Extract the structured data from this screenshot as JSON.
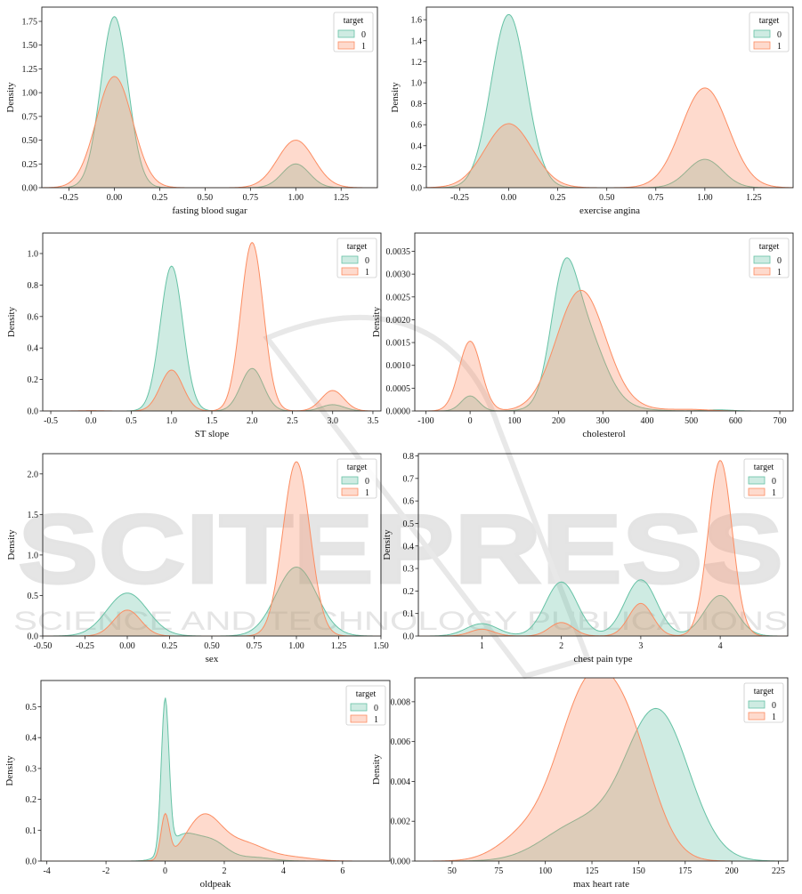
{
  "palette": {
    "class0": "#66c2a5",
    "class1": "#fc8d62"
  },
  "watermark": {
    "main": "SCITEPRESS",
    "sub": "SCIENCE AND TECHNOLOGY PUBLICATIONS"
  },
  "chart_data": [
    {
      "type": "area",
      "xlabel": "fasting blood sugar",
      "ylabel": "Density",
      "xlim": [
        -0.4,
        1.45
      ],
      "ylim": [
        0,
        1.9
      ],
      "xticks": [
        -0.25,
        0.0,
        0.25,
        0.5,
        0.75,
        1.0,
        1.25
      ],
      "yticks": [
        0.0,
        0.25,
        0.5,
        0.75,
        1.0,
        1.25,
        1.5,
        1.75
      ],
      "legend": {
        "title": "target",
        "placement": "top-right",
        "entries": [
          "0",
          "1"
        ]
      },
      "series": [
        {
          "name": "0",
          "peaks": [
            [
              0.0,
              1.8,
              0.075
            ],
            [
              1.0,
              0.25,
              0.075
            ]
          ]
        },
        {
          "name": "1",
          "peaks": [
            [
              0.0,
              1.17,
              0.1
            ],
            [
              1.0,
              0.5,
              0.1
            ]
          ]
        }
      ]
    },
    {
      "type": "area",
      "xlabel": "exercise angina",
      "ylabel": "Density",
      "xlim": [
        -0.42,
        1.45
      ],
      "ylim": [
        0,
        1.72
      ],
      "xticks": [
        -0.25,
        0.0,
        0.25,
        0.5,
        0.75,
        1.0,
        1.25
      ],
      "yticks": [
        0.0,
        0.2,
        0.4,
        0.6,
        0.8,
        1.0,
        1.2,
        1.4,
        1.6
      ],
      "legend": {
        "title": "target",
        "placement": "top-right",
        "entries": [
          "0",
          "1"
        ]
      },
      "series": [
        {
          "name": "0",
          "peaks": [
            [
              0.0,
              1.65,
              0.09
            ],
            [
              1.0,
              0.27,
              0.09
            ]
          ]
        },
        {
          "name": "1",
          "peaks": [
            [
              0.0,
              0.61,
              0.12
            ],
            [
              1.0,
              0.95,
              0.12
            ]
          ]
        }
      ]
    },
    {
      "type": "area",
      "xlabel": "ST slope",
      "ylabel": "Density",
      "xlim": [
        -0.6,
        3.6
      ],
      "ylim": [
        0,
        1.13
      ],
      "xticks": [
        -0.5,
        0.0,
        0.5,
        1.0,
        1.5,
        2.0,
        2.5,
        3.0,
        3.5
      ],
      "yticks": [
        0.0,
        0.2,
        0.4,
        0.6,
        0.8,
        1.0
      ],
      "legend": {
        "title": "target",
        "placement": "top-right",
        "entries": [
          "0",
          "1"
        ]
      },
      "series": [
        {
          "name": "0",
          "peaks": [
            [
              1.0,
              0.92,
              0.14
            ],
            [
              2.0,
              0.27,
              0.14
            ],
            [
              3.0,
              0.04,
              0.14
            ]
          ]
        },
        {
          "name": "1",
          "peaks": [
            [
              0.0,
              0.002,
              0.14
            ],
            [
              1.0,
              0.26,
              0.14
            ],
            [
              2.0,
              1.07,
              0.14
            ],
            [
              3.0,
              0.13,
              0.14
            ]
          ]
        }
      ]
    },
    {
      "type": "area",
      "xlabel": "cholesterol",
      "ylabel": "Density",
      "xlim": [
        -125,
        730
      ],
      "ylim": [
        0,
        0.0039
      ],
      "xticks": [
        -100,
        0,
        100,
        200,
        300,
        400,
        500,
        600,
        700
      ],
      "yticks": [
        0.0,
        0.0005,
        0.001,
        0.0015,
        0.002,
        0.0025,
        0.003,
        0.0035
      ],
      "legend": {
        "title": "target",
        "placement": "top-right",
        "entries": [
          "0",
          "1"
        ]
      },
      "series": [
        {
          "name": "0",
          "peaks": [
            [
              0,
              0.00033,
              20
            ],
            [
              210,
              0.0019,
              28
            ],
            [
              250,
              0.0019,
              48
            ],
            [
              330,
              7e-05,
              60
            ],
            [
              560,
              2.5e-05,
              30
            ]
          ]
        },
        {
          "name": "1",
          "peaks": [
            [
              0,
              0.00153,
              25
            ],
            [
              250,
              0.0026,
              55
            ],
            [
              330,
              8e-05,
              75
            ],
            [
              500,
              3e-05,
              40
            ]
          ]
        }
      ]
    },
    {
      "type": "area",
      "xlabel": "sex",
      "ylabel": "Density",
      "xlim": [
        -0.5,
        1.5
      ],
      "ylim": [
        0,
        2.25
      ],
      "xticks": [
        -0.5,
        -0.25,
        0.0,
        0.25,
        0.5,
        0.75,
        1.0,
        1.25,
        1.5
      ],
      "yticks": [
        0.0,
        0.5,
        1.0,
        1.5,
        2.0
      ],
      "legend": {
        "title": "target",
        "placement": "top-right",
        "entries": [
          "0",
          "1"
        ]
      },
      "series": [
        {
          "name": "0",
          "peaks": [
            [
              0.0,
              0.53,
              0.12
            ],
            [
              1.0,
              0.85,
              0.12
            ]
          ]
        },
        {
          "name": "1",
          "peaks": [
            [
              0.0,
              0.32,
              0.08
            ],
            [
              1.0,
              2.15,
              0.08
            ]
          ]
        }
      ]
    },
    {
      "type": "area",
      "xlabel": "chest pain type",
      "ylabel": "Density",
      "xlim": [
        0.2,
        4.85
      ],
      "ylim": [
        0,
        0.81
      ],
      "xticks": [
        1,
        2,
        3,
        4
      ],
      "yticks": [
        0.0,
        0.1,
        0.2,
        0.3,
        0.4,
        0.5,
        0.6,
        0.7,
        0.8
      ],
      "legend": {
        "title": "target",
        "placement": "top-right",
        "entries": [
          "0",
          "1"
        ]
      },
      "series": [
        {
          "name": "0",
          "peaks": [
            [
              1.0,
              0.055,
              0.2
            ],
            [
              2.0,
              0.24,
              0.2
            ],
            [
              3.0,
              0.25,
              0.2
            ],
            [
              4.0,
              0.18,
              0.2
            ]
          ]
        },
        {
          "name": "1",
          "peaks": [
            [
              1.0,
              0.03,
              0.15
            ],
            [
              2.0,
              0.06,
              0.15
            ],
            [
              3.0,
              0.145,
              0.15
            ],
            [
              4.0,
              0.78,
              0.15
            ]
          ]
        }
      ]
    },
    {
      "type": "area",
      "xlabel": "oldpeak",
      "ylabel": "Density",
      "xlim": [
        -4.2,
        7.6
      ],
      "ylim": [
        0,
        0.585
      ],
      "xticks": [
        -4,
        -2,
        0,
        2,
        4,
        6
      ],
      "yticks": [
        0.0,
        0.1,
        0.2,
        0.3,
        0.4,
        0.5
      ],
      "legend": {
        "title": "target",
        "placement": "top-right",
        "entries": [
          "0",
          "1"
        ]
      },
      "series": [
        {
          "name": "0",
          "peaks": [
            [
              0.0,
              0.49,
              0.13
            ],
            [
              0.6,
              0.08,
              0.5
            ],
            [
              1.6,
              0.06,
              0.5
            ],
            [
              3.0,
              0.012,
              0.6
            ]
          ]
        },
        {
          "name": "1",
          "peaks": [
            [
              0.0,
              0.14,
              0.14
            ],
            [
              1.3,
              0.145,
              0.6
            ],
            [
              2.7,
              0.055,
              0.7
            ],
            [
              4.3,
              0.012,
              0.7
            ]
          ]
        }
      ]
    },
    {
      "type": "area",
      "xlabel": "max heart rate",
      "ylabel": "Density",
      "xlim": [
        30,
        230
      ],
      "ylim": [
        0,
        0.0092
      ],
      "xticks": [
        50,
        75,
        100,
        125,
        150,
        175,
        200,
        225
      ],
      "yticks": [
        0.0,
        0.002,
        0.004,
        0.006,
        0.008
      ],
      "legend": {
        "title": "target",
        "placement": "top-right",
        "entries": [
          "0",
          "1"
        ]
      },
      "series": [
        {
          "name": "0",
          "peaks": [
            [
              160,
              0.0075,
              17
            ],
            [
              118,
              0.0018,
              19
            ]
          ]
        },
        {
          "name": "1",
          "peaks": [
            [
              122,
              0.0081,
              16
            ],
            [
              146,
              0.0048,
              14
            ],
            [
              88,
              0.0011,
              14
            ]
          ]
        }
      ]
    }
  ]
}
